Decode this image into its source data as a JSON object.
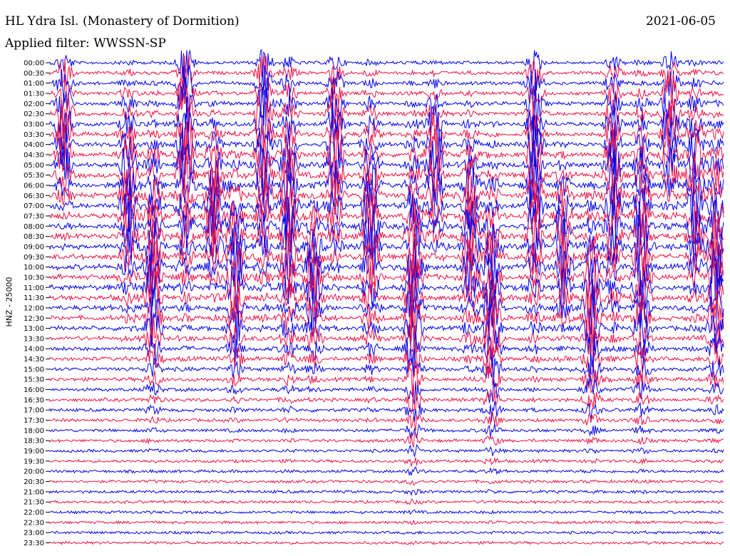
{
  "header": {
    "station": "HL Ydra Isl. (Monastery of Dormition)",
    "date": "2021-06-05",
    "filter": "Applied filter: WWSSN-SP"
  },
  "chart_data": {
    "type": "line",
    "title": "HL Ydra Isl. (Monastery of Dormition)",
    "ylabel": "HNZ - 25000",
    "y_tick_labels": [
      "00:00",
      "00:30",
      "01:00",
      "01:30",
      "02:00",
      "02:30",
      "03:00",
      "03:30",
      "04:00",
      "04:30",
      "05:00",
      "05:30",
      "06:00",
      "06:30",
      "07:00",
      "07:30",
      "08:00",
      "08:30",
      "09:00",
      "09:30",
      "10:00",
      "10:30",
      "11:00",
      "11:30",
      "12:00",
      "12:30",
      "13:00",
      "13:30",
      "14:00",
      "14:30",
      "15:00",
      "15:30",
      "16:00",
      "16:30",
      "17:00",
      "17:30",
      "18:00",
      "18:30",
      "19:00",
      "19:30",
      "20:00",
      "20:30",
      "21:00",
      "21:30",
      "22:00",
      "22:30",
      "23:00",
      "23:30"
    ],
    "trace_colors": [
      "#0000ee",
      "#ee1144"
    ],
    "grid": false,
    "legend": "none"
  }
}
